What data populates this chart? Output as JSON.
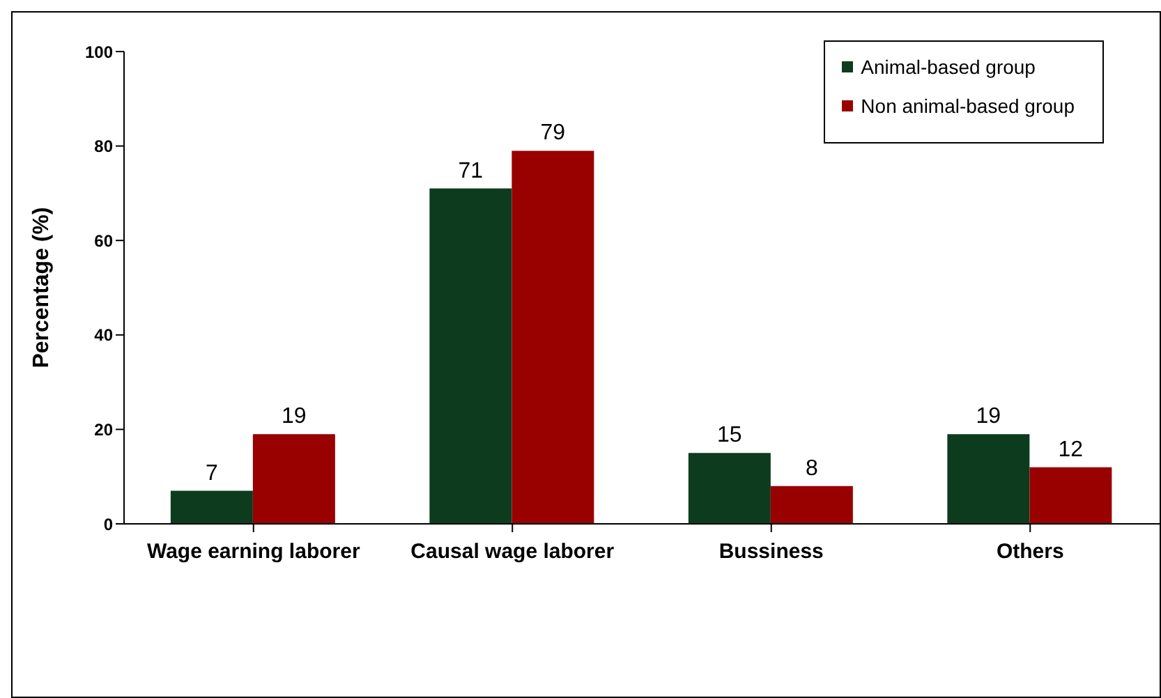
{
  "chart_data": {
    "type": "bar",
    "ylabel": "Percentage (%)",
    "categories": [
      "Wage earning laborer",
      "Causal wage laborer",
      "Bussiness",
      "Others"
    ],
    "series": [
      {
        "name": "Animal-based group",
        "color": "#0d3b1e",
        "values": [
          7,
          71,
          15,
          19
        ]
      },
      {
        "name": "Non animal-based group",
        "color": "#990000",
        "values": [
          19,
          79,
          8,
          12
        ]
      }
    ],
    "ylim": [
      0,
      100
    ],
    "yticks": [
      0,
      20,
      40,
      60,
      80,
      100
    ],
    "grid": false,
    "legend": "top right",
    "data_labels": true
  }
}
